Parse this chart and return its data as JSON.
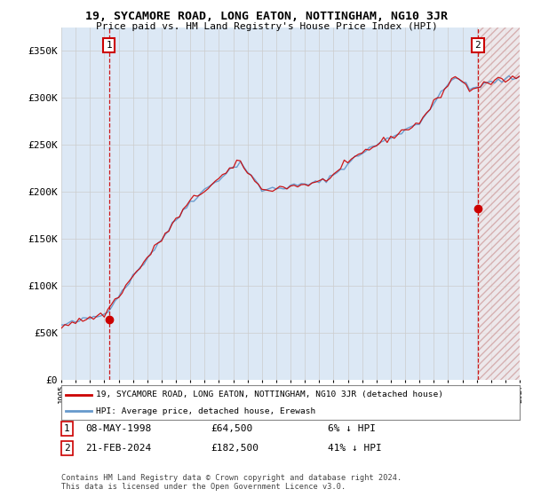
{
  "title": "19, SYCAMORE ROAD, LONG EATON, NOTTINGHAM, NG10 3JR",
  "subtitle": "Price paid vs. HM Land Registry's House Price Index (HPI)",
  "legend_line1": "19, SYCAMORE ROAD, LONG EATON, NOTTINGHAM, NG10 3JR (detached house)",
  "legend_line2": "HPI: Average price, detached house, Erewash",
  "point1_date": "08-MAY-1998",
  "point1_price": "£64,500",
  "point1_hpi": "6% ↓ HPI",
  "point2_date": "21-FEB-2024",
  "point2_price": "£182,500",
  "point2_hpi": "41% ↓ HPI",
  "footer": "Contains HM Land Registry data © Crown copyright and database right 2024.\nThis data is licensed under the Open Government Licence v3.0.",
  "ylim": [
    0,
    375000
  ],
  "yticks": [
    0,
    50000,
    100000,
    150000,
    200000,
    250000,
    300000,
    350000
  ],
  "ytick_labels": [
    "£0",
    "£50K",
    "£100K",
    "£150K",
    "£200K",
    "£250K",
    "£300K",
    "£350K"
  ],
  "red_color": "#cc0000",
  "blue_color": "#6699cc",
  "grid_color": "#cccccc",
  "background_color": "#ffffff",
  "plot_bg_color": "#dce8f5"
}
